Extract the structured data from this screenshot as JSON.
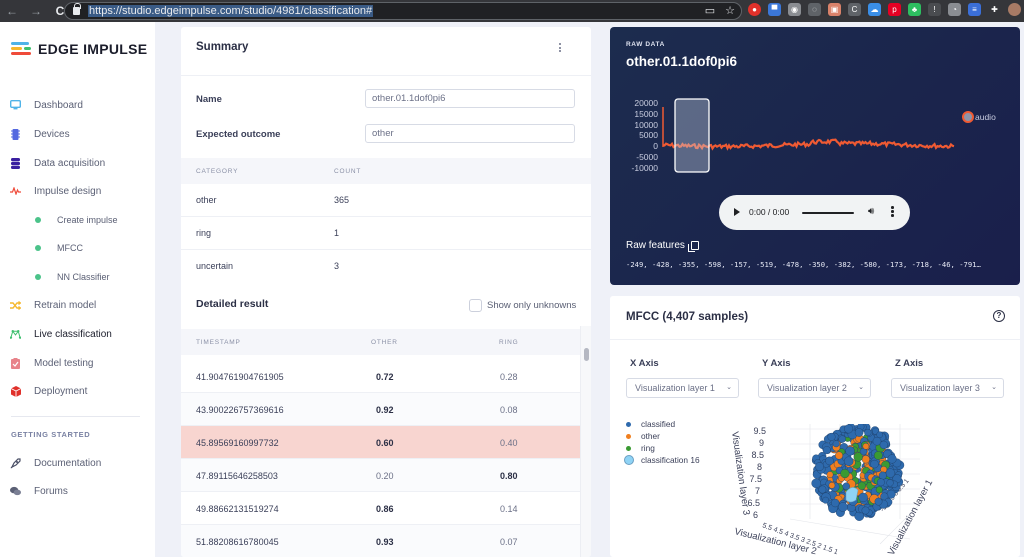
{
  "browser": {
    "url": "https://studio.edgeimpulse.com/studio/4981/classification#",
    "nav": {
      "back": "←",
      "forward": "→",
      "reload": "C"
    },
    "extensions": [
      {
        "name": "ext-red",
        "color": "#e0312b",
        "glyph": "●"
      },
      {
        "name": "ext-monitor",
        "color": "#3b77d8",
        "glyph": "▀"
      },
      {
        "name": "ext-gray-circle",
        "color": "#8a8d92",
        "glyph": "◉"
      },
      {
        "name": "ext-bulb",
        "color": "#5f6368",
        "glyph": "◌"
      },
      {
        "name": "ext-photo",
        "color": "#d9826a",
        "glyph": "▣"
      },
      {
        "name": "ext-c",
        "color": "#5f6368",
        "glyph": "C"
      },
      {
        "name": "ext-cloud",
        "color": "#3a8ee6",
        "glyph": "☁"
      },
      {
        "name": "ext-pinterest",
        "color": "#e60023",
        "glyph": "p"
      },
      {
        "name": "ext-evernote",
        "color": "#2dbe60",
        "glyph": "♣"
      },
      {
        "name": "ext-info",
        "color": "#4a4c50",
        "glyph": "!"
      },
      {
        "name": "ext-gauge",
        "color": "#8a8d92",
        "glyph": "◔"
      },
      {
        "name": "ext-list",
        "color": "#3b6fd8",
        "glyph": "≡"
      },
      {
        "name": "ext-puzzle",
        "color": "#35363a",
        "glyph": "✚"
      },
      {
        "name": "ext-avatar",
        "color": "#a87b65",
        "glyph": ""
      }
    ]
  },
  "sidebar": {
    "brand": "EDGE IMPULSE",
    "items": [
      {
        "id": "dashboard",
        "label": "Dashboard",
        "icon": "monitor-icon",
        "color": "#4fb3e8"
      },
      {
        "id": "devices",
        "label": "Devices",
        "icon": "chip-icon",
        "color": "#5468e0"
      },
      {
        "id": "data-acquisition",
        "label": "Data acquisition",
        "icon": "database-icon",
        "color": "#3a1fa0"
      },
      {
        "id": "impulse-design",
        "label": "Impulse design",
        "icon": "pulse-icon",
        "color": "#ef4b3a"
      },
      {
        "id": "create-impulse",
        "label": "Create impulse",
        "sub": true
      },
      {
        "id": "mfcc",
        "label": "MFCC",
        "sub": true
      },
      {
        "id": "nn-classifier",
        "label": "NN Classifier",
        "sub": true
      },
      {
        "id": "retrain-model",
        "label": "Retrain model",
        "icon": "shuffle-icon",
        "color": "#f5b82e"
      },
      {
        "id": "live-classification",
        "label": "Live classification",
        "icon": "network-icon",
        "color": "#3fbf6f",
        "active": true
      },
      {
        "id": "model-testing",
        "label": "Model testing",
        "icon": "clipboard-check-icon",
        "color": "#e8838a"
      },
      {
        "id": "deployment",
        "label": "Deployment",
        "icon": "box-icon",
        "color": "#e0312b"
      }
    ],
    "section_heading": "GETTING STARTED",
    "footer_items": [
      {
        "id": "documentation",
        "label": "Documentation",
        "icon": "rocket-icon"
      },
      {
        "id": "forums",
        "label": "Forums",
        "icon": "chat-icon"
      }
    ]
  },
  "summary": {
    "title": "Summary",
    "name_label": "Name",
    "name_value": "other.01.1dof0pi6",
    "expected_label": "Expected outcome",
    "expected_value": "other",
    "category_table": {
      "headers": [
        "CATEGORY",
        "COUNT"
      ],
      "rows": [
        {
          "category": "other",
          "count": "365"
        },
        {
          "category": "ring",
          "count": "1"
        },
        {
          "category": "uncertain",
          "count": "3"
        }
      ]
    },
    "detailed_title": "Detailed result",
    "show_unknowns_label": "Show only unknowns",
    "detailed_table": {
      "headers": [
        "TIMESTAMP",
        "OTHER",
        "RING"
      ],
      "rows": [
        {
          "timestamp": "41.904761904761905",
          "other": "0.72",
          "ring": "0.28",
          "winner": "other"
        },
        {
          "timestamp": "43.900226757369616",
          "other": "0.92",
          "ring": "0.08",
          "winner": "other"
        },
        {
          "timestamp": "45.89569160997732",
          "other": "0.60",
          "ring": "0.40",
          "winner": "other",
          "highlight": true
        },
        {
          "timestamp": "47.89115646258503",
          "other": "0.20",
          "ring": "0.80",
          "winner": "ring"
        },
        {
          "timestamp": "49.88662131519274",
          "other": "0.86",
          "ring": "0.14",
          "winner": "other"
        },
        {
          "timestamp": "51.88208616780045",
          "other": "0.93",
          "ring": "0.07",
          "winner": "other"
        }
      ]
    }
  },
  "raw_data": {
    "eyebrow": "RAW DATA",
    "title": "other.01.1dof0pi6",
    "y_ticks": [
      "20000",
      "15000",
      "10000",
      "5000",
      "0",
      "-5000",
      "-10000"
    ],
    "legend": "audio",
    "series_color": "#ef5a33",
    "player": {
      "time": "0:00 / 0:00"
    },
    "raw_features_label": "Raw features",
    "raw_features_values": "-249, -428, -355, -598, -157, -519, -478, -350, -382, -580, -173, -718, -46, -791…"
  },
  "mfcc": {
    "title": "MFCC (4,407 samples)",
    "axes": [
      {
        "label": "X Axis",
        "value": "Visualization layer 1"
      },
      {
        "label": "Y Axis",
        "value": "Visualization layer 2"
      },
      {
        "label": "Z Axis",
        "value": "Visualization layer 3"
      }
    ],
    "legend": [
      {
        "label": "classified",
        "color": "#2e6aad"
      },
      {
        "label": "other",
        "color": "#f07f1f"
      },
      {
        "label": "ring",
        "color": "#3a9a32"
      },
      {
        "label": "classification 16",
        "color": "#8fd3f5"
      }
    ],
    "z_ticks": [
      "9.5",
      "9",
      "8.5",
      "8",
      "7.5",
      "7",
      "6.5",
      "6"
    ],
    "axis_titles": {
      "x": "Visualization layer 1",
      "y": "Visualization layer 2",
      "z": "Visualization layer 3"
    }
  }
}
